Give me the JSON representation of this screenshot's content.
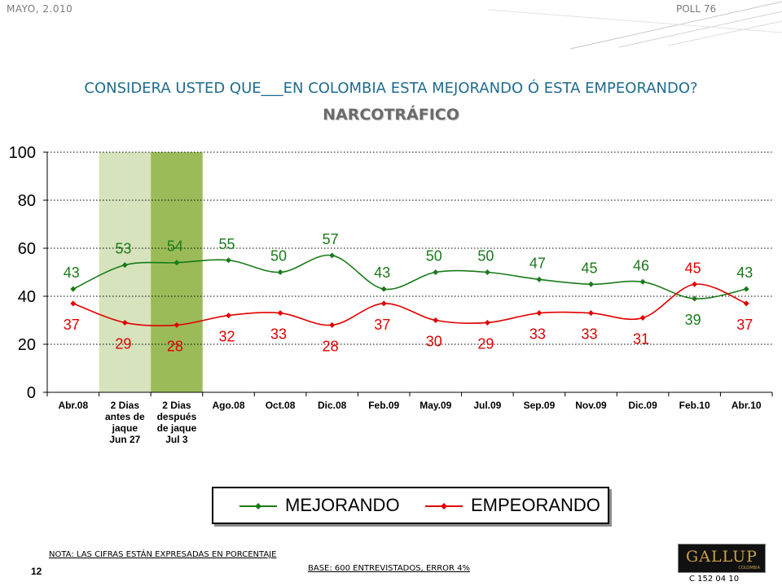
{
  "header": {
    "date": "MAYO, 2.010",
    "poll": "POLL 76"
  },
  "title": "CONSIDERA USTED QUE___EN COLOMBIA ESTA MEJORANDO Ó ESTA EMPEORANDO?",
  "subtitle": "NARCOTRÁFICO",
  "chart_data": {
    "type": "line",
    "categories": [
      "Abr.08",
      "2 Dias antes de jaque Jun 27",
      "2 Dias después de jaque Jul 3",
      "Ago.08",
      "Oct.08",
      "Dic.08",
      "Feb.09",
      "May.09",
      "Jul.09",
      "Sep.09",
      "Nov.09",
      "Dic.09",
      "Feb.10",
      "Abr.10"
    ],
    "category_lines": [
      [
        "Abr.08"
      ],
      [
        "2 Dias",
        "antes de",
        "jaque",
        "Jun 27"
      ],
      [
        "2 Dias",
        "después",
        "de jaque",
        "Jul 3"
      ],
      [
        "Ago.08"
      ],
      [
        "Oct.08"
      ],
      [
        "Dic.08"
      ],
      [
        "Feb.09"
      ],
      [
        "May.09"
      ],
      [
        "Jul.09"
      ],
      [
        "Sep.09"
      ],
      [
        "Nov.09"
      ],
      [
        "Dic.09"
      ],
      [
        "Feb.10"
      ],
      [
        "Abr.10"
      ]
    ],
    "series": [
      {
        "name": "MEJORANDO",
        "color": "#1a7a1a",
        "values": [
          43,
          53,
          54,
          55,
          50,
          57,
          43,
          50,
          50,
          47,
          45,
          46,
          39,
          43
        ]
      },
      {
        "name": "EMPEORANDO",
        "color": "#e00000",
        "values": [
          37,
          29,
          28,
          32,
          33,
          28,
          37,
          30,
          29,
          33,
          33,
          31,
          45,
          37
        ]
      }
    ],
    "ylim": [
      0,
      100
    ],
    "yticks": [
      0,
      20,
      40,
      60,
      80,
      100
    ],
    "grid": true,
    "highlight_bands": [
      {
        "category_index": 1,
        "color": "#d6e3bc"
      },
      {
        "category_index": 2,
        "color": "#9bbb59"
      }
    ],
    "legend_position": "bottom"
  },
  "footer": {
    "note": "NOTA: LAS CIFRAS ESTÁN EXPRESADAS EN PORCENTAJE",
    "page": "12",
    "base": "BASE: 600 ENTREVISTADOS, ERROR 4%",
    "logo": "GALLUP",
    "logo_sub": "COLOMBIA",
    "code": "C 152 04 10"
  }
}
